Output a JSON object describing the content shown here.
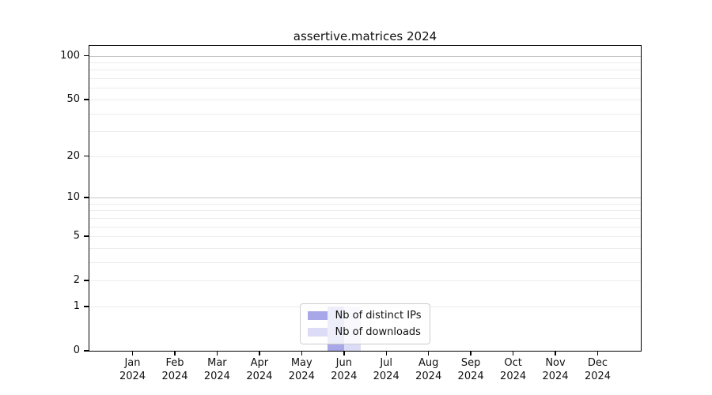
{
  "title": "assertive.matrices 2024",
  "chart_data": {
    "type": "bar",
    "title": "assertive.matrices 2024",
    "x_months": [
      "Jan",
      "Feb",
      "Mar",
      "Apr",
      "May",
      "Jun",
      "Jul",
      "Aug",
      "Sep",
      "Oct",
      "Nov",
      "Dec"
    ],
    "x_year": "2024",
    "series": [
      {
        "name": "Nb of distinct IPs",
        "color": "#a8a8e8",
        "values": [
          0,
          0,
          0,
          0,
          0,
          1,
          0,
          0,
          0,
          0,
          0,
          0
        ]
      },
      {
        "name": "Nb of downloads",
        "color": "#dcdcf6",
        "values": [
          0,
          0,
          0,
          0,
          0,
          1,
          0,
          0,
          0,
          0,
          0,
          0
        ]
      }
    ],
    "yscale": "log1p",
    "ylim": [
      0,
      117
    ],
    "yticks": [
      0,
      1,
      2,
      5,
      10,
      20,
      50,
      100
    ],
    "gridlines_major": [
      10,
      100
    ],
    "gridlines_minor": [
      1,
      2,
      3,
      4,
      5,
      6,
      7,
      8,
      9,
      20,
      30,
      40,
      50,
      60,
      70,
      80,
      90
    ],
    "grid": true,
    "legend_position": "lower center"
  },
  "colors": {
    "distinct_ips": "#a8a8e8",
    "downloads": "#dcdcf6",
    "grid_major": "#c6c6c6",
    "grid_minor": "#ececec",
    "axis": "#000000",
    "text": "#111111",
    "legend_border": "#cccccc",
    "background": "#ffffff"
  }
}
